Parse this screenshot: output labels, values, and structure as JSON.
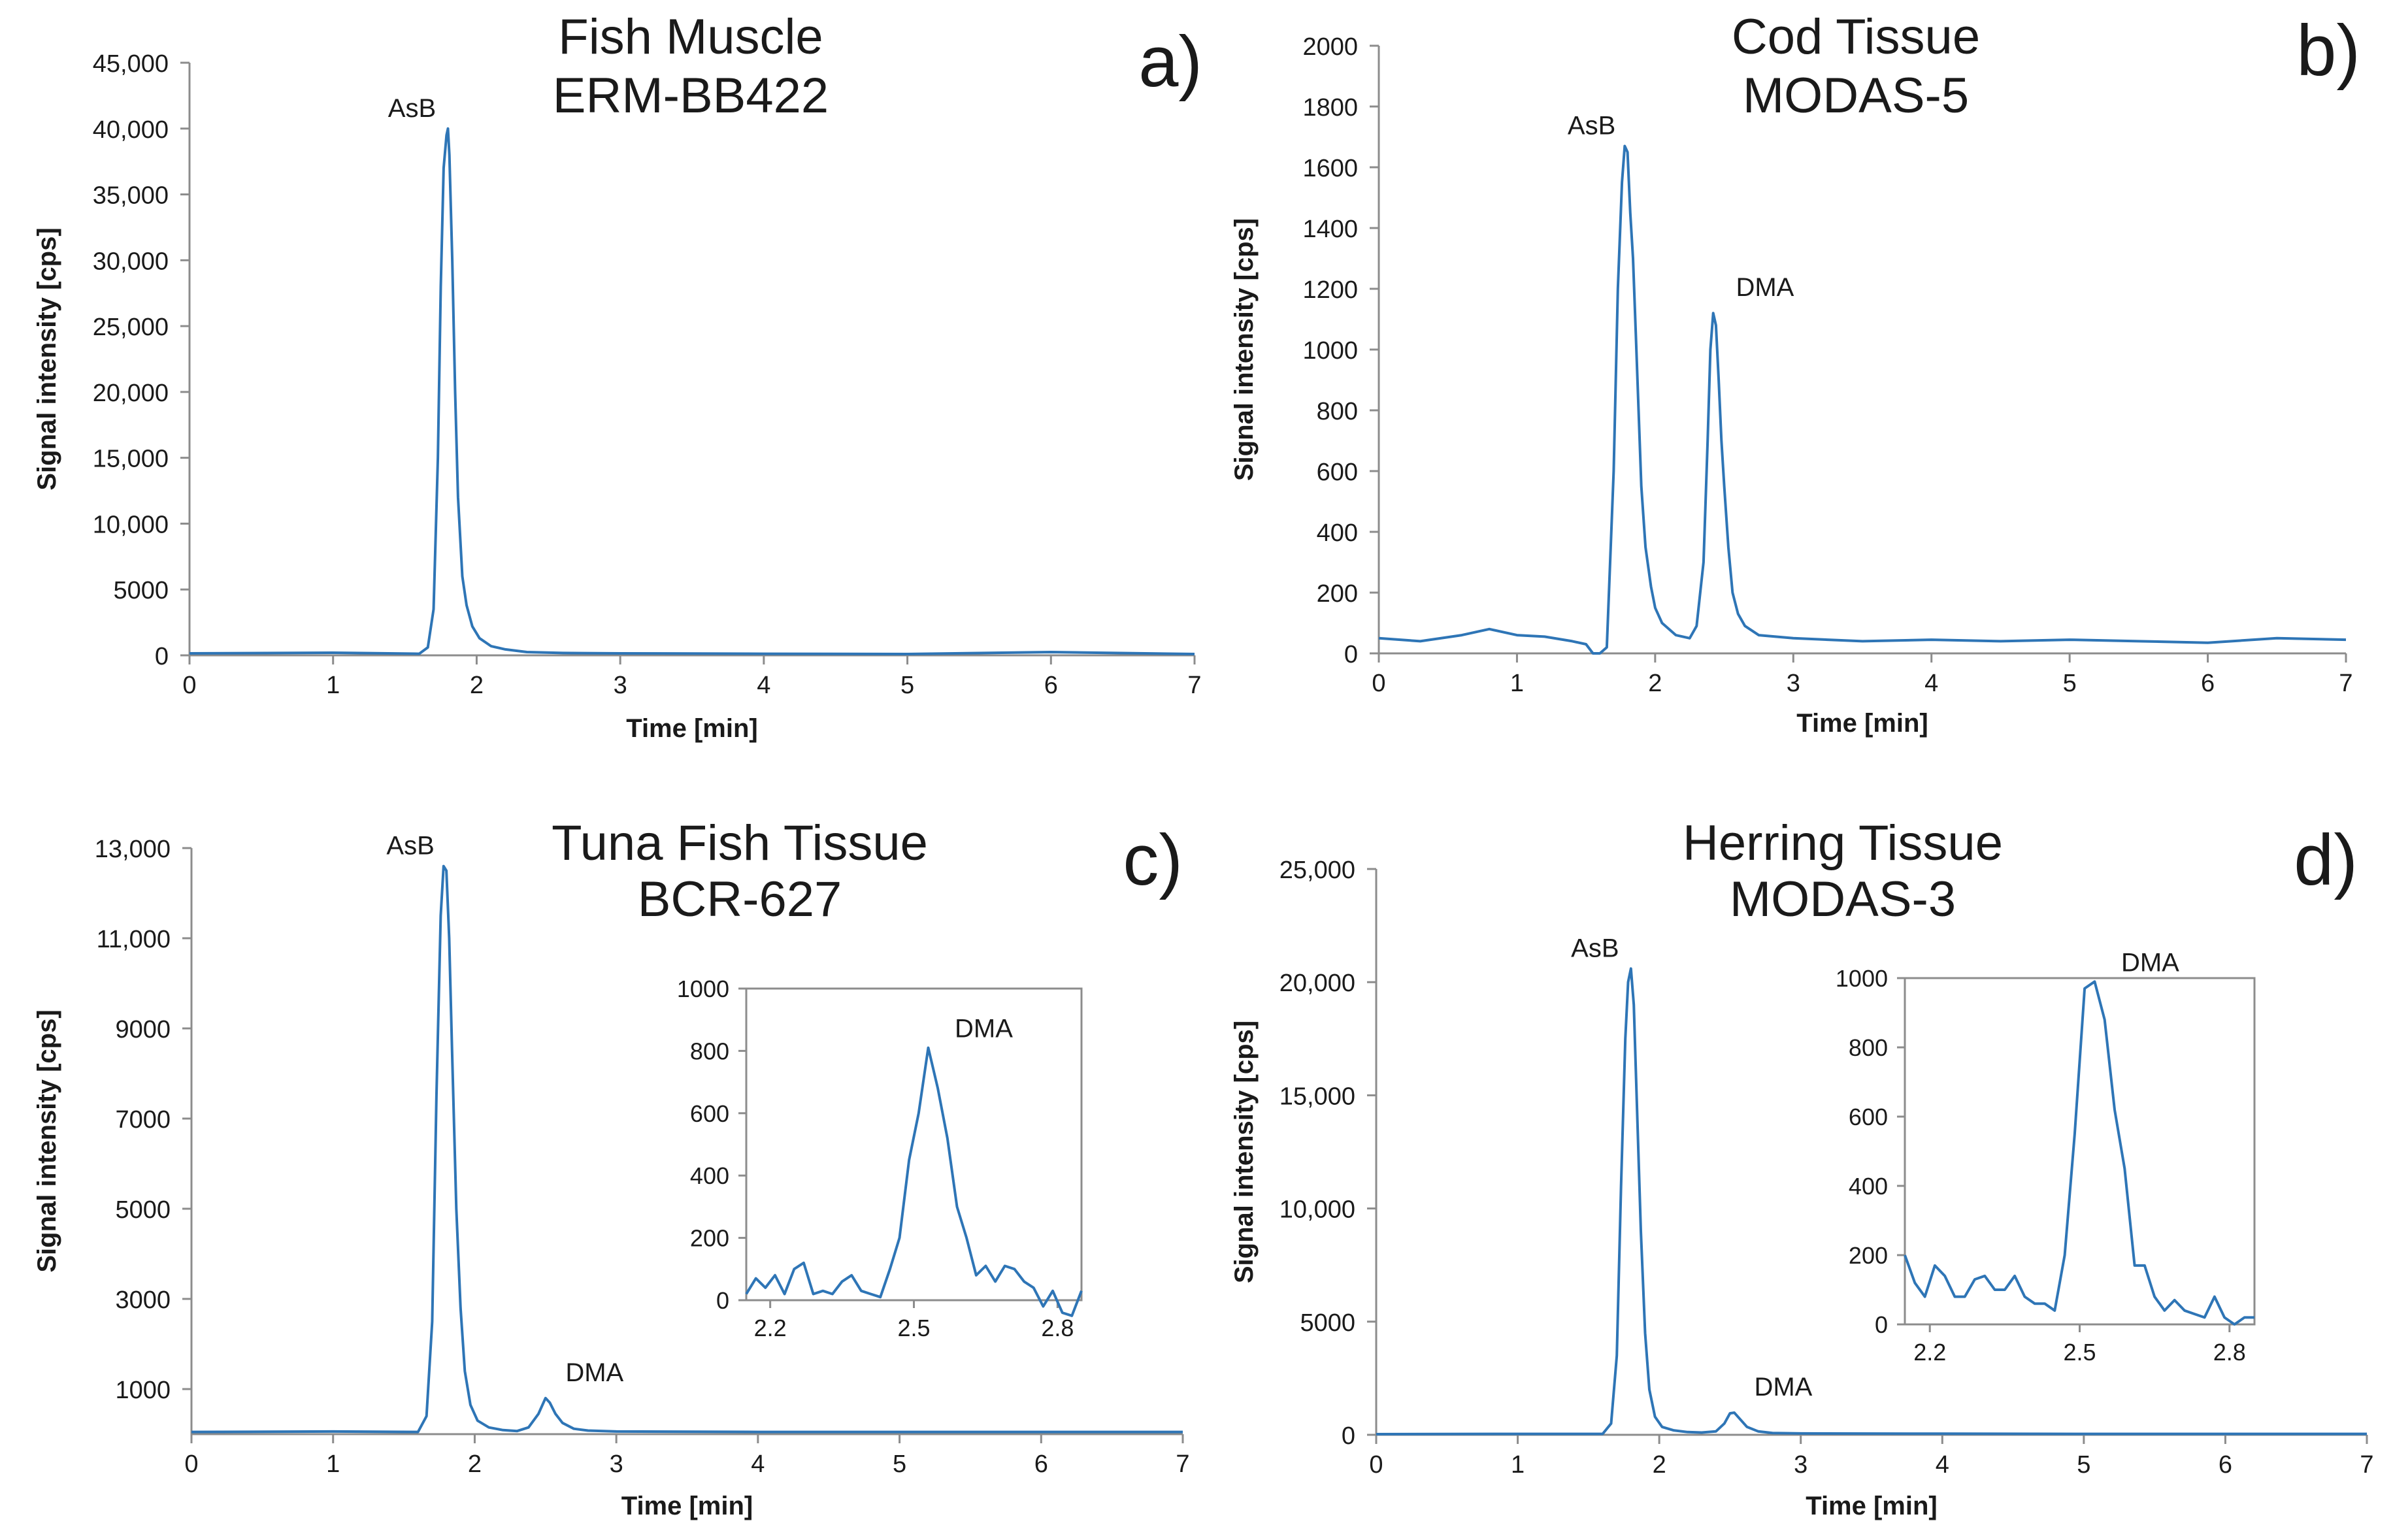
{
  "chart_data": [
    {
      "type": "line",
      "panel_label": "a)",
      "title": [
        "Fish Muscle",
        "ERM-BB422"
      ],
      "xlabel": "Time [min]",
      "ylabel": "Signal intensity [cps]",
      "xlim": [
        0,
        7
      ],
      "ylim": [
        0,
        45000
      ],
      "x_ticks": [
        0,
        1,
        2,
        3,
        4,
        5,
        6,
        7
      ],
      "x_tick_labels": [
        "0",
        "1",
        "2",
        "3",
        "4",
        "5",
        "6",
        "7"
      ],
      "y_ticks": [
        0,
        5000,
        10000,
        15000,
        20000,
        25000,
        30000,
        35000,
        40000,
        45000
      ],
      "y_tick_labels": [
        "0",
        "5000",
        "10,000",
        "15,000",
        "20,000",
        "25,000",
        "30,000",
        "35,000",
        "40,000",
        "45,000"
      ],
      "series": [
        {
          "name": "signal",
          "color": "#2e75b6",
          "x": [
            0,
            1.0,
            1.6,
            1.66,
            1.7,
            1.73,
            1.75,
            1.77,
            1.79,
            1.8,
            1.81,
            1.83,
            1.85,
            1.87,
            1.9,
            1.93,
            1.97,
            2.02,
            2.1,
            2.2,
            2.35,
            2.6,
            3.0,
            4.0,
            5.0,
            6.0,
            7.0
          ],
          "y": [
            150,
            200,
            120,
            600,
            3500,
            15000,
            28000,
            37000,
            39500,
            40000,
            38000,
            30000,
            20000,
            12000,
            6000,
            3800,
            2200,
            1300,
            700,
            450,
            250,
            180,
            150,
            120,
            100,
            250,
            100
          ]
        }
      ],
      "annotations": [
        {
          "text": "AsB",
          "x": 1.8,
          "y": 40000
        }
      ]
    },
    {
      "type": "line",
      "panel_label": "b)",
      "title": [
        "Cod Tissue",
        "MODAS-5"
      ],
      "xlabel": "Time [min]",
      "ylabel": "Signal intensity [cps]",
      "xlim": [
        0,
        7
      ],
      "ylim": [
        0,
        2000
      ],
      "x_ticks": [
        0,
        1,
        2,
        3,
        4,
        5,
        6,
        7
      ],
      "x_tick_labels": [
        "0",
        "1",
        "2",
        "3",
        "4",
        "5",
        "6",
        "7"
      ],
      "y_ticks": [
        0,
        200,
        400,
        600,
        800,
        1000,
        1200,
        1400,
        1600,
        1800,
        2000
      ],
      "y_tick_labels": [
        "0",
        "200",
        "400",
        "600",
        "800",
        "1000",
        "1200",
        "1400",
        "1600",
        "1800",
        "2000"
      ],
      "series": [
        {
          "name": "signal",
          "color": "#2e75b6",
          "x": [
            0,
            0.3,
            0.6,
            0.8,
            1.0,
            1.2,
            1.4,
            1.5,
            1.55,
            1.6,
            1.65,
            1.7,
            1.73,
            1.76,
            1.78,
            1.8,
            1.82,
            1.84,
            1.86,
            1.88,
            1.9,
            1.93,
            1.97,
            2.0,
            2.05,
            2.15,
            2.25,
            2.3,
            2.35,
            2.38,
            2.4,
            2.42,
            2.44,
            2.46,
            2.48,
            2.5,
            2.53,
            2.56,
            2.6,
            2.65,
            2.75,
            3.0,
            3.5,
            4.0,
            4.5,
            5.0,
            5.5,
            6.0,
            6.5,
            7.0
          ],
          "y": [
            50,
            40,
            60,
            80,
            60,
            55,
            40,
            30,
            -80,
            -90,
            20,
            600,
            1200,
            1550,
            1670,
            1650,
            1450,
            1300,
            1050,
            800,
            550,
            350,
            220,
            150,
            100,
            60,
            50,
            90,
            300,
            700,
            1000,
            1120,
            1080,
            900,
            700,
            550,
            350,
            200,
            130,
            90,
            60,
            50,
            40,
            45,
            40,
            45,
            40,
            35,
            50,
            45
          ]
        }
      ],
      "annotations": [
        {
          "text": "AsB",
          "x": 1.8,
          "y": 1670
        },
        {
          "text": "DMA",
          "x": 2.44,
          "y": 1120
        }
      ]
    },
    {
      "type": "line",
      "panel_label": "c)",
      "title": [
        "Tuna Fish Tissue",
        "BCR-627"
      ],
      "xlabel": "Time [min]",
      "ylabel": "Signal intensity [cps]",
      "xlim": [
        0,
        7
      ],
      "ylim": [
        0,
        13000
      ],
      "x_ticks": [
        0,
        1,
        2,
        3,
        4,
        5,
        6,
        7
      ],
      "x_tick_labels": [
        "0",
        "1",
        "2",
        "3",
        "4",
        "5",
        "6",
        "7"
      ],
      "y_ticks": [
        1000,
        3000,
        5000,
        7000,
        9000,
        11000,
        13000
      ],
      "y_tick_labels": [
        "1000",
        "3000",
        "5000",
        "7000",
        "9000",
        "11,000",
        "13,000"
      ],
      "series": [
        {
          "name": "signal",
          "color": "#2e75b6",
          "x": [
            0,
            1.0,
            1.6,
            1.66,
            1.7,
            1.73,
            1.76,
            1.78,
            1.8,
            1.82,
            1.84,
            1.87,
            1.9,
            1.93,
            1.97,
            2.02,
            2.1,
            2.2,
            2.3,
            2.38,
            2.45,
            2.5,
            2.53,
            2.57,
            2.62,
            2.7,
            2.8,
            3.0,
            4.0,
            5.0,
            6.0,
            7.0
          ],
          "y": [
            50,
            60,
            50,
            400,
            2500,
            7500,
            11500,
            12600,
            12500,
            11000,
            8500,
            5000,
            2800,
            1400,
            650,
            300,
            150,
            90,
            70,
            150,
            450,
            800,
            700,
            450,
            250,
            120,
            80,
            60,
            50,
            50,
            50,
            50
          ]
        }
      ],
      "annotations": [
        {
          "text": "AsB",
          "x": 1.8,
          "y": 12600
        },
        {
          "text": "DMA",
          "x": 2.5,
          "y": 800
        }
      ],
      "inset": {
        "xlim": [
          2.15,
          2.85
        ],
        "ylim": [
          0,
          1000
        ],
        "x_ticks": [
          2.2,
          2.5,
          2.8
        ],
        "x_tick_labels": [
          "2.2",
          "2.5",
          "2.8"
        ],
        "y_ticks": [
          0,
          200,
          400,
          600,
          800,
          1000
        ],
        "y_tick_labels": [
          "0",
          "200",
          "400",
          "600",
          "800",
          "1000"
        ],
        "x": [
          2.15,
          2.17,
          2.19,
          2.21,
          2.23,
          2.25,
          2.27,
          2.29,
          2.31,
          2.33,
          2.35,
          2.37,
          2.39,
          2.41,
          2.43,
          2.45,
          2.47,
          2.49,
          2.51,
          2.53,
          2.55,
          2.57,
          2.59,
          2.61,
          2.63,
          2.65,
          2.67,
          2.69,
          2.71,
          2.73,
          2.75,
          2.77,
          2.79,
          2.81,
          2.83,
          2.85
        ],
        "y": [
          20,
          70,
          40,
          80,
          20,
          100,
          120,
          20,
          30,
          20,
          60,
          80,
          30,
          20,
          10,
          100,
          200,
          450,
          600,
          810,
          680,
          520,
          300,
          200,
          80,
          110,
          60,
          110,
          100,
          60,
          40,
          -20,
          30,
          -40,
          -50,
          30
        ],
        "annotations": [
          {
            "text": "DMA",
            "x": 2.53,
            "y": 810
          }
        ]
      }
    },
    {
      "type": "line",
      "panel_label": "d)",
      "title": [
        "Herring Tissue",
        "MODAS-3"
      ],
      "xlabel": "Time [min]",
      "ylabel": "Signal intensity [cps]",
      "xlim": [
        0,
        7
      ],
      "ylim": [
        0,
        25000
      ],
      "x_ticks": [
        0,
        1,
        2,
        3,
        4,
        5,
        6,
        7
      ],
      "x_tick_labels": [
        "0",
        "1",
        "2",
        "3",
        "4",
        "5",
        "6",
        "7"
      ],
      "y_ticks": [
        0,
        5000,
        10000,
        15000,
        20000,
        25000
      ],
      "y_tick_labels": [
        "0",
        "5000",
        "10,000",
        "15,000",
        "20,000",
        "25,000"
      ],
      "series": [
        {
          "name": "signal",
          "color": "#2e75b6",
          "x": [
            0,
            1.0,
            1.6,
            1.66,
            1.7,
            1.73,
            1.76,
            1.78,
            1.8,
            1.82,
            1.84,
            1.87,
            1.9,
            1.93,
            1.97,
            2.02,
            2.1,
            2.2,
            2.3,
            2.4,
            2.46,
            2.5,
            2.53,
            2.57,
            2.62,
            2.7,
            2.8,
            3.0,
            4.0,
            5.0,
            6.0,
            7.0
          ],
          "y": [
            30,
            40,
            40,
            500,
            3500,
            11000,
            17500,
            20000,
            20600,
            19000,
            15000,
            9000,
            4500,
            2000,
            800,
            350,
            200,
            120,
            100,
            150,
            500,
            950,
            980,
            700,
            350,
            150,
            80,
            60,
            50,
            40,
            40,
            40
          ]
        }
      ],
      "annotations": [
        {
          "text": "AsB",
          "x": 1.8,
          "y": 20600
        },
        {
          "text": "DMA",
          "x": 2.53,
          "y": 980
        }
      ],
      "inset": {
        "xlim": [
          2.15,
          2.85
        ],
        "ylim": [
          0,
          1000
        ],
        "x_ticks": [
          2.2,
          2.5,
          2.8
        ],
        "x_tick_labels": [
          "2.2",
          "2.5",
          "2.8"
        ],
        "y_ticks": [
          0,
          200,
          400,
          600,
          800,
          1000
        ],
        "y_tick_labels": [
          "0",
          "200",
          "400",
          "600",
          "800",
          "1000"
        ],
        "x": [
          2.15,
          2.17,
          2.19,
          2.21,
          2.23,
          2.25,
          2.27,
          2.29,
          2.31,
          2.33,
          2.35,
          2.37,
          2.39,
          2.41,
          2.43,
          2.45,
          2.47,
          2.49,
          2.51,
          2.53,
          2.55,
          2.57,
          2.59,
          2.61,
          2.63,
          2.65,
          2.67,
          2.69,
          2.71,
          2.73,
          2.75,
          2.77,
          2.79,
          2.81,
          2.83,
          2.85
        ],
        "y": [
          200,
          120,
          80,
          170,
          140,
          80,
          80,
          130,
          140,
          100,
          100,
          140,
          80,
          60,
          60,
          40,
          200,
          550,
          970,
          990,
          880,
          620,
          450,
          170,
          170,
          80,
          40,
          70,
          40,
          30,
          20,
          80,
          20,
          0,
          20,
          20
        ],
        "annotations": [
          {
            "text": "DMA",
            "x": 2.53,
            "y": 990
          }
        ]
      }
    }
  ]
}
